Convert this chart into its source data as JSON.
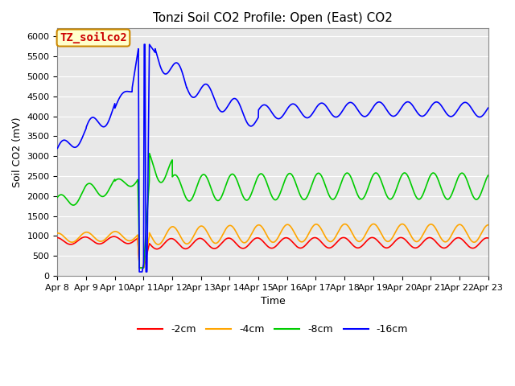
{
  "title": "Tonzi Soil CO2 Profile: Open (East) CO2",
  "ylabel": "Soil CO2 (mV)",
  "xlabel": "Time",
  "ylim": [
    0,
    6200
  ],
  "yticks": [
    0,
    500,
    1000,
    1500,
    2000,
    2500,
    3000,
    3500,
    4000,
    4500,
    5000,
    5500,
    6000
  ],
  "xtick_labels": [
    "Apr 8",
    "Apr 9",
    "Apr 10",
    "Apr 11",
    "Apr 12",
    "Apr 13",
    "Apr 14",
    "Apr 15",
    "Apr 16",
    "Apr 17",
    "Apr 18",
    "Apr 19",
    "Apr 20",
    "Apr 21",
    "Apr 22",
    "Apr 23"
  ],
  "colors": {
    "2cm": "#ff0000",
    "4cm": "#ffa500",
    "8cm": "#00cc00",
    "16cm": "#0000ff"
  },
  "legend_labels": [
    "-2cm",
    "-4cm",
    "-8cm",
    "-16cm"
  ],
  "figure_bg": "#ffffff",
  "plot_bg": "#e8e8e8",
  "grid_color": "#ffffff",
  "annotation_box": {
    "text": "TZ_soilco2",
    "facecolor": "#ffffcc",
    "edgecolor": "#cc8800",
    "textcolor": "#cc0000",
    "fontsize": 10
  },
  "title_fontsize": 11,
  "axis_fontsize": 9,
  "tick_fontsize": 8,
  "legend_fontsize": 9,
  "linewidth": 1.2
}
